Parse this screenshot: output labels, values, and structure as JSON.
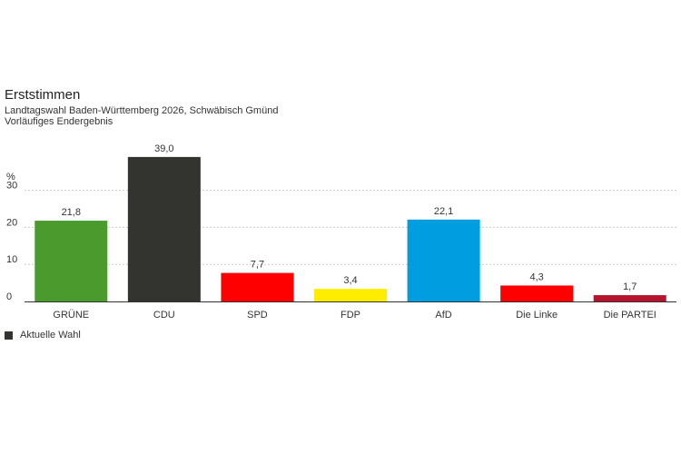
{
  "header": {
    "title": "Erststimmen",
    "subtitle": "Landtagswahl Baden-Württemberg 2026, Schwäbisch Gmünd",
    "note": "Vorläufiges Endergebnis"
  },
  "legend": {
    "label": "Aktuelle Wahl",
    "color": "#333330"
  },
  "chart_data": {
    "type": "bar",
    "ylabel": "%",
    "ylim": [
      0,
      40
    ],
    "yticks": [
      0,
      10,
      20,
      30
    ],
    "grid": true,
    "categories": [
      "GRÜNE",
      "CDU",
      "SPD",
      "FDP",
      "AfD",
      "Die Linke",
      "Die PARTEI"
    ],
    "values": [
      21.8,
      39.0,
      7.7,
      3.4,
      22.1,
      4.3,
      1.7
    ],
    "value_labels": [
      "21,8",
      "39,0",
      "7,7",
      "3,4",
      "22,1",
      "4,3",
      "1,7"
    ],
    "colors": [
      "#4b9a2e",
      "#333330",
      "#ff0000",
      "#ffed00",
      "#009ee0",
      "#ff0000",
      "#b5132e"
    ],
    "series": [
      {
        "name": "Aktuelle Wahl"
      }
    ]
  }
}
